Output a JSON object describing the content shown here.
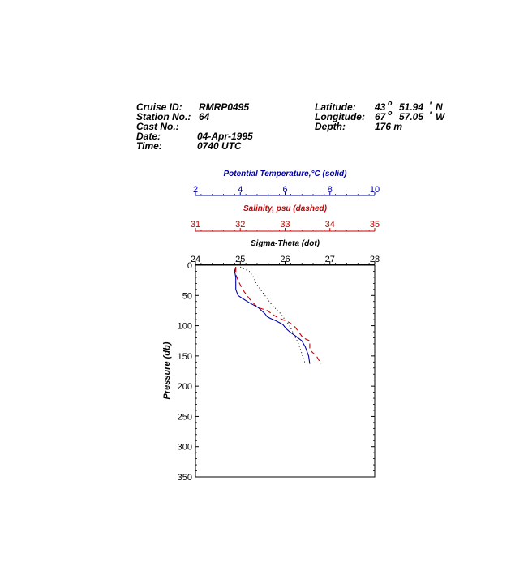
{
  "header": {
    "cruise_label": "Cruise ID:",
    "cruise_value": "RMRP0495",
    "station_label": "Station No.:",
    "station_value": "64",
    "cast_label": "Cast No.:",
    "cast_value": "",
    "date_label": "Date:",
    "date_value": "04-Apr-1995",
    "time_label": "Time:",
    "time_value": "0740 UTC",
    "lat_label": "Latitude:",
    "lat_deg": "43",
    "lat_min": "51.94",
    "lat_hem": "N",
    "lon_label": "Longitude:",
    "lon_deg": "67",
    "lon_min": "57.05",
    "lon_hem": "W",
    "depth_label": "Depth:",
    "depth_value": "176 m"
  },
  "chart_data": {
    "type": "line",
    "ylabel": "Pressure (db)",
    "y_axis": {
      "range": [
        0,
        350
      ],
      "inverted": true,
      "ticks": [
        "0",
        "50",
        "100",
        "150",
        "200",
        "250",
        "300",
        "350"
      ]
    },
    "axes": [
      {
        "id": "temperature",
        "label": "Potential Temperature,°C (solid)",
        "range": [
          2,
          10
        ],
        "ticks": [
          "2",
          "4",
          "6",
          "8",
          "10"
        ],
        "color": "#0000a0"
      },
      {
        "id": "salinity",
        "label": "Salinity, psu  (dashed)",
        "range": [
          31,
          35
        ],
        "ticks": [
          "31",
          "32",
          "33",
          "34",
          "35"
        ],
        "color": "#cc0000"
      },
      {
        "id": "sigma",
        "label": "Sigma-Theta (dot)",
        "range": [
          24,
          28
        ],
        "ticks": [
          "24",
          "25",
          "26",
          "27",
          "28"
        ],
        "color": "#000000"
      }
    ],
    "series": [
      {
        "axis": "temperature",
        "style": "solid",
        "color": "#0000a0",
        "x": [
          3.8,
          3.75,
          3.8,
          3.8,
          3.8,
          3.85,
          3.9,
          4.1,
          4.4,
          4.8,
          5.1,
          5.2,
          5.35,
          5.6,
          5.9,
          6.05,
          6.2,
          6.5,
          6.75,
          6.9,
          7.05,
          7.1
        ],
        "y": [
          3,
          10,
          20,
          30,
          40,
          45,
          50,
          55,
          62,
          70,
          80,
          85,
          88,
          92,
          98,
          105,
          110,
          118,
          125,
          135,
          150,
          163
        ]
      },
      {
        "axis": "salinity",
        "style": "dashed",
        "color": "#cc0000",
        "x": [
          31.9,
          31.9,
          31.95,
          32.05,
          32.15,
          32.25,
          32.4,
          32.6,
          32.8,
          32.95,
          33.1,
          33.2,
          33.3,
          33.4,
          33.55,
          33.55,
          33.7,
          33.8
        ],
        "y": [
          3,
          15,
          25,
          40,
          50,
          60,
          70,
          75,
          85,
          90,
          95,
          100,
          110,
          120,
          125,
          140,
          150,
          163
        ]
      },
      {
        "axis": "sigma",
        "style": "dot",
        "color": "#000000",
        "x": [
          25.0,
          25.2,
          25.3,
          25.35,
          25.45,
          25.55,
          25.7,
          25.9,
          26.1,
          26.3,
          26.45
        ],
        "y": [
          3,
          10,
          20,
          30,
          40,
          50,
          65,
          80,
          100,
          130,
          163
        ]
      }
    ]
  }
}
